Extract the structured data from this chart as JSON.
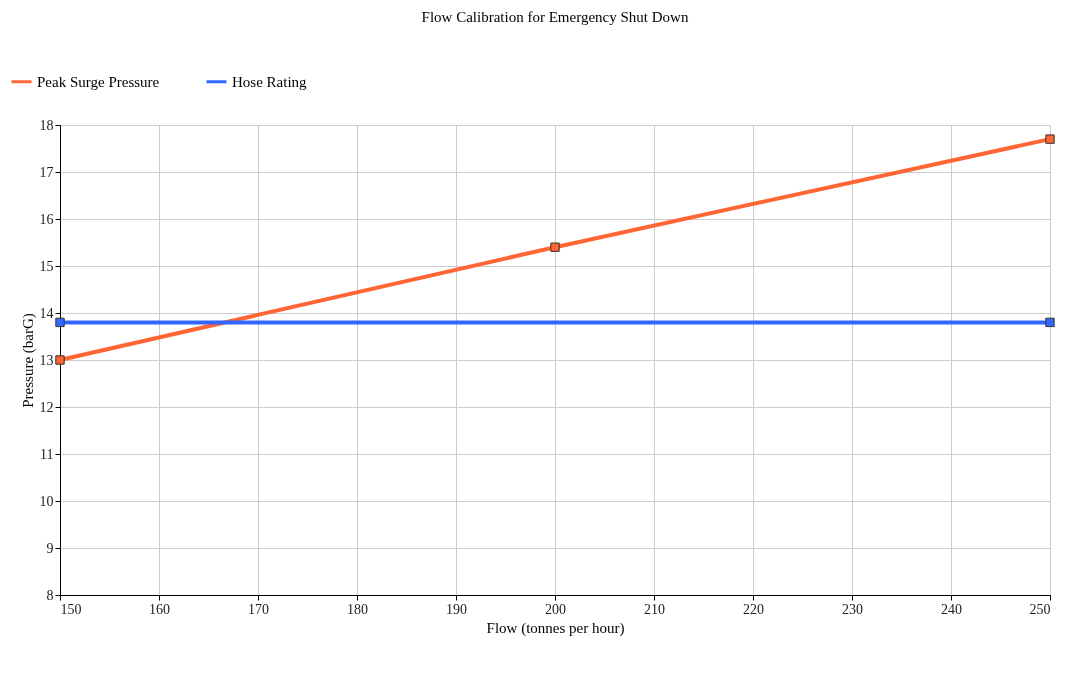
{
  "chart_data": {
    "type": "line",
    "title": "Flow Calibration for Emergency Shut Down",
    "xlabel": "Flow (tonnes per hour)",
    "ylabel": "Pressure (barG)",
    "x": [
      150,
      200,
      250
    ],
    "series": [
      {
        "name": "Peak Surge Pressure",
        "color": "#ff6633",
        "values": [
          13.0,
          15.4,
          17.7
        ]
      },
      {
        "name": "Hose Rating",
        "color": "#3366ff",
        "x": [
          150,
          250
        ],
        "values": [
          13.8,
          13.8
        ]
      }
    ],
    "xlim": [
      150,
      250
    ],
    "xticks": [
      150,
      160,
      170,
      180,
      190,
      200,
      210,
      220,
      230,
      240,
      250
    ],
    "ylim": [
      8,
      18
    ],
    "yticks": [
      8,
      9,
      10,
      11,
      12,
      13,
      14,
      15,
      16,
      17,
      18
    ],
    "grid": true,
    "legend": "top left",
    "marker": "square",
    "line_style": "solid"
  }
}
